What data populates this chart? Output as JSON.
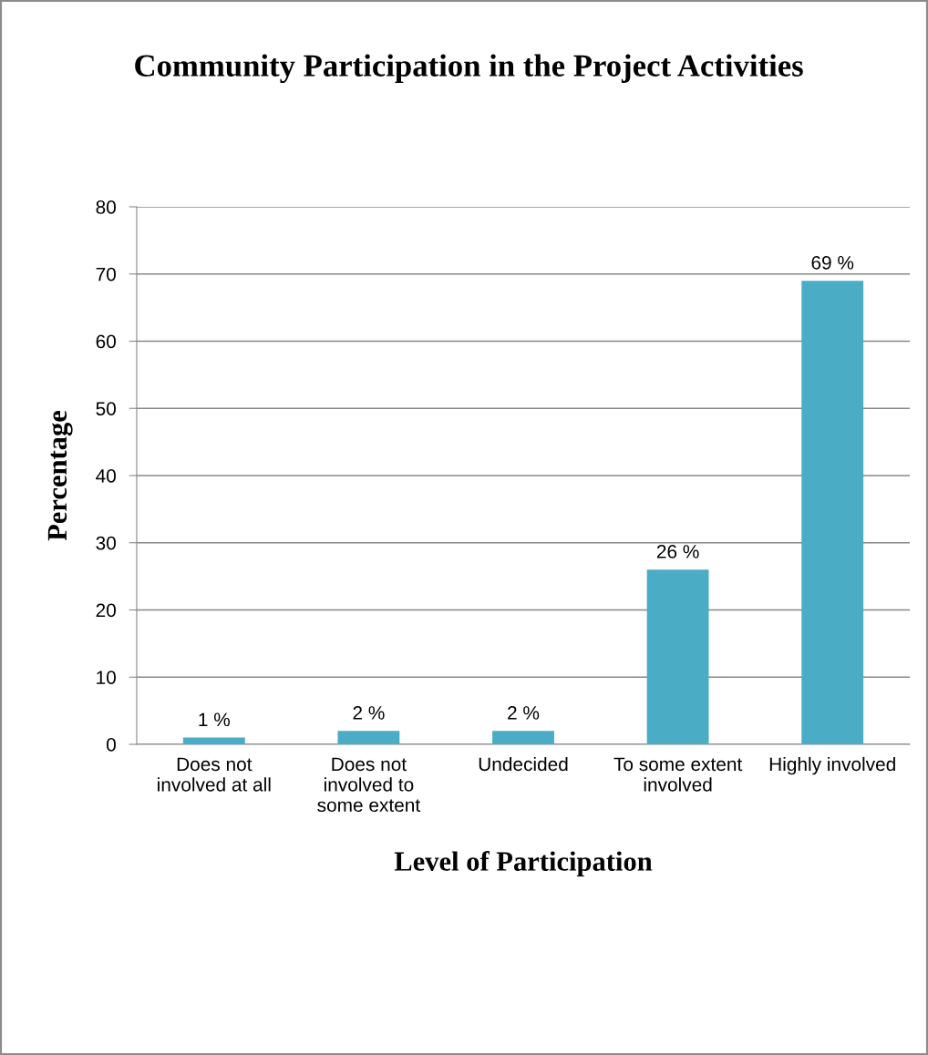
{
  "chart_data": {
    "type": "bar",
    "title": "Community Participation in the Project Activities",
    "xlabel": "Level of Participation",
    "ylabel": "Percentage",
    "categories": [
      "Does not\ninvolved at all",
      "Does not\ninvolved to\nsome extent",
      "Undecided",
      "To some extent\ninvolved",
      "Highly involved"
    ],
    "values": [
      1,
      2,
      2,
      26,
      69
    ],
    "value_labels": [
      "1 %",
      "2 %",
      "2 %",
      "26 %",
      "69 %"
    ],
    "color": "#4bacc6",
    "ylim": [
      0,
      80
    ],
    "yticks": [
      0,
      10,
      20,
      30,
      40,
      50,
      60,
      70,
      80
    ],
    "grid": "y",
    "legend": false
  }
}
